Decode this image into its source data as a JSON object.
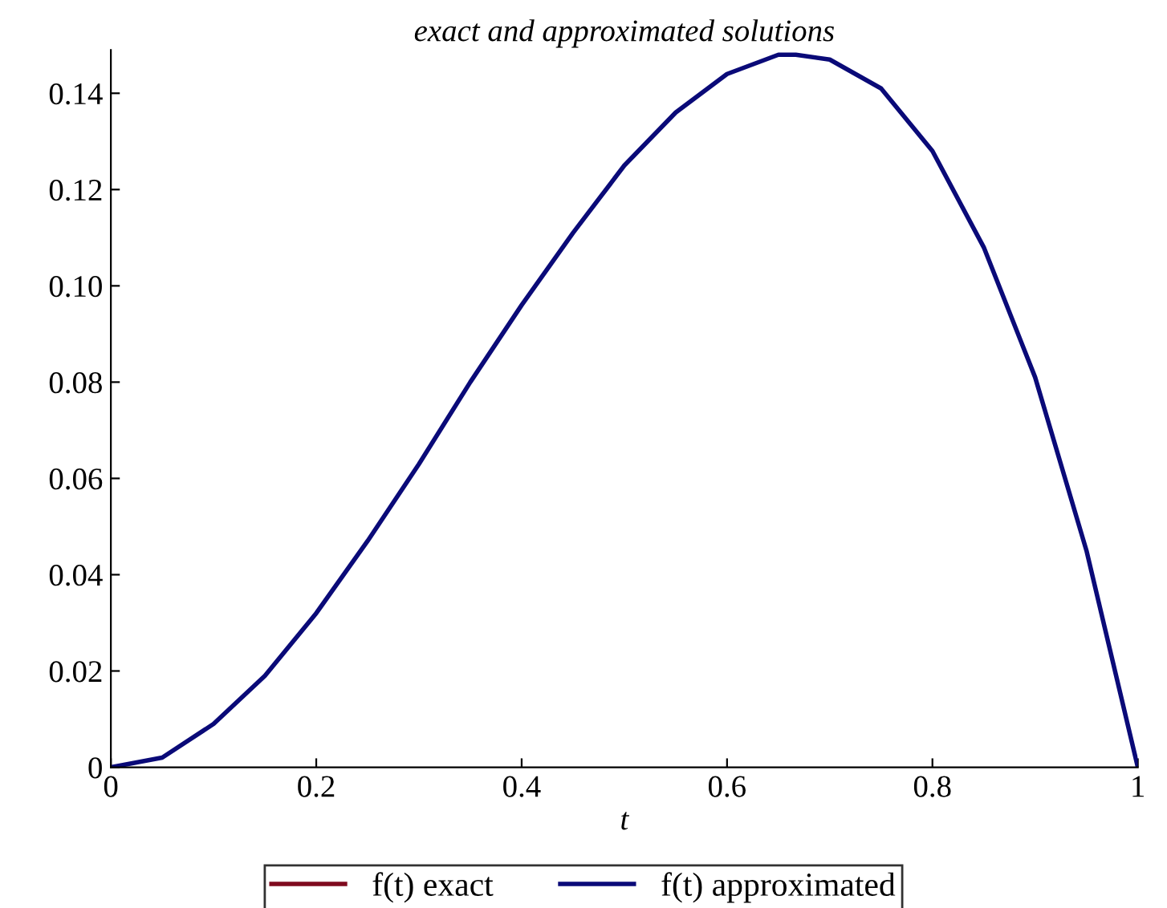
{
  "chart_data": {
    "type": "line",
    "title": "exact and approximated solutions",
    "xlabel": "t",
    "x": [
      0,
      0.05,
      0.1,
      0.15,
      0.2,
      0.25,
      0.3,
      0.35,
      0.4,
      0.45,
      0.5,
      0.55,
      0.6,
      0.65,
      0.667,
      0.7,
      0.75,
      0.8,
      0.85,
      0.9,
      0.95,
      1
    ],
    "series": [
      {
        "name": "f(t) exact",
        "color": "#7f0a1e",
        "values": [
          null,
          null,
          null,
          null,
          null,
          null,
          null,
          null,
          null,
          null,
          null,
          null,
          null,
          null,
          null,
          null,
          null,
          null,
          null,
          null,
          null,
          null
        ]
      },
      {
        "name": "f(t) approximated",
        "color": "#0a0a78",
        "values": [
          0,
          0.002,
          0.009,
          0.019,
          0.032,
          0.047,
          0.063,
          0.08,
          0.096,
          0.111,
          0.125,
          0.136,
          0.144,
          0.148,
          0.148,
          0.147,
          0.141,
          0.128,
          0.108,
          0.081,
          0.045,
          0
        ]
      }
    ],
    "xlim": [
      0,
      1
    ],
    "ylim": [
      0,
      0.149
    ],
    "xticks": [
      0,
      0.2,
      0.4,
      0.6,
      0.8,
      1
    ],
    "yticks": [
      0,
      0.02,
      0.04,
      0.06,
      0.08,
      {
        "value": 0.1,
        "label": "0.10"
      },
      0.12,
      0.14
    ],
    "grid": false,
    "legend": "bottom",
    "marker": "none",
    "line_style": "solid"
  }
}
